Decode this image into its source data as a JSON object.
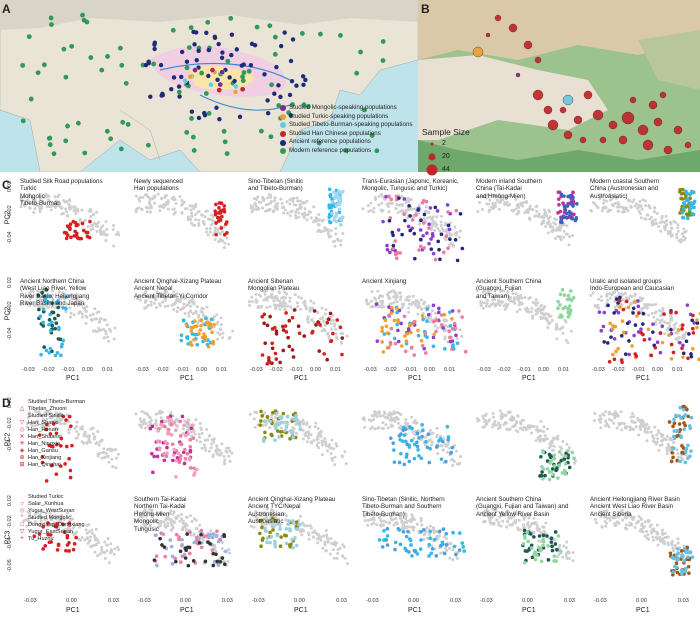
{
  "panel_letters": {
    "a": "A",
    "b": "B",
    "c": "C",
    "d": "D"
  },
  "panel_a": {
    "legend": [
      {
        "label": "Studied Mongolic-speaking populations",
        "color": "#7b2a8c"
      },
      {
        "label": "Studied Turkic-speaking populations",
        "color": "#e8a03a"
      },
      {
        "label": "Studied Tibeto-Burman-speaking populations",
        "color": "#67c9e0"
      },
      {
        "label": "Studied Han Chinese populations",
        "color": "#c0262d"
      },
      {
        "label": "Ancient reference populations",
        "color": "#1f2a7a"
      },
      {
        "label": "Modern reference populations",
        "color": "#2e9a56"
      }
    ]
  },
  "panel_b": {
    "size_legend_title": "Sample Size",
    "size_legend": [
      "2",
      "20",
      "44"
    ],
    "circle_color": "#c0262d"
  },
  "panel_c": {
    "ylabel": "PC2",
    "xlabel": "PC1",
    "x_ticks": [
      "-0.03",
      "-0.02",
      "-0.01",
      "0.00",
      "0.01"
    ],
    "y_ticks": [
      "0.02",
      "-0.02",
      "-0.04"
    ],
    "row1_titles": [
      "Studied Silk Road populations\nTurkic\nMongolic\nTibeto-Burman",
      "Newly sequenced\nHan populations",
      "Sino-Tibetan (Sinitic\nand Tibeto-Burman)",
      "Trans-Eurasian (Japonic, Koreanic,\nMongolic, Tungusic and Turkic)",
      "Modern inland Southern\nChina (Tai-Kadai\nand Hmong-Mien)",
      "Modern coastal Southern\nChina (Austronesian and\nAustroasiatic)"
    ],
    "row2_titles": [
      "Ancient Northern China\n(West Liao River, Yellow\nRiver Basin, Heilongjiang\nRiver Basin) and Japan",
      "Ancient Qinghai-Xizang Plateau\nAncient Nepal\nAncient Tibetan-Yi Corridor",
      "Ancient Siberian\nMongolian Plateau",
      "Ancient Xinjiang",
      "Ancient Southern China\n(Guangxi, Fujian\nand Taiwan)",
      "Uralic and isolated groups\nIndo-European and Caucasian"
    ]
  },
  "panel_d": {
    "ylabel_top": "PC2",
    "ylabel_bottom": "PC3",
    "xlabel": "PC1",
    "x_ticks": [
      "-0.03",
      "0.00",
      "0.03"
    ],
    "y_ticks_top": [
      "0.02",
      "-0.02",
      "-0.04"
    ],
    "y_ticks_bottom": [
      "0.02",
      "-0.02",
      "-0.04",
      "-0.06"
    ],
    "legend_top": [
      {
        "sym": "",
        "label": "Studied Tibeto-Burman"
      },
      {
        "sym": "△",
        "label": "Tibetan_Zhuoni"
      },
      {
        "sym": "",
        "label": "Studied Sinitic"
      },
      {
        "sym": "▽",
        "label": "Han_Shanxi"
      },
      {
        "sym": "◇",
        "label": "Han_Henan"
      },
      {
        "sym": "✕",
        "label": "Han_Shaanxi"
      },
      {
        "sym": "✳",
        "label": "Han_Ningxia"
      },
      {
        "sym": "◈",
        "label": "Han_Gansu"
      },
      {
        "sym": "⊕",
        "label": "Han_Xinjiang"
      },
      {
        "sym": "⊞",
        "label": "Han_Qinghai"
      }
    ],
    "legend_bottom": [
      {
        "sym": "",
        "label": "Studied Turkic"
      },
      {
        "sym": "○",
        "label": "Salar_Xunhua"
      },
      {
        "sym": "◇",
        "label": "Yugur_WestSunan"
      },
      {
        "sym": "",
        "label": "Studied Mongolic"
      },
      {
        "sym": "□",
        "label": "Dongxiang_Dongxiang"
      },
      {
        "sym": "▽",
        "label": "Yugur_EastSunan"
      },
      {
        "sym": "+",
        "label": "Tu_Huzhu"
      }
    ],
    "bottom_titles": [
      "",
      "Southern Tai-Kadai\nNorthern Tai-Kadai\nHmong-Mien\nMongolic\nTungusic",
      "Ancient Qinghai-Xizang Plateau\nAncient TYC/Nepal\nAustronesian\nAustroasiatic",
      "Sino-Tibetan (Sinitic, Northern\nTibeto-Burman and Southern\nTibeto-Burman)",
      "Ancient Southern China\n(Guangxi, Fujian and Taiwan) and\nAncient Yellow River Basin",
      "Ancient Heilongjiang River Basin\nAncient West Liao River Basin\nAncient Siberia"
    ]
  },
  "colors": {
    "grey": "#c8c8c8",
    "red": "#d62020",
    "cyan": "#35b8e8",
    "purple": "#8a3fd0",
    "pink": "#f07aa0",
    "magenta": "#c0309a",
    "olive": "#8a8a10",
    "darkblue": "#1f2a7a",
    "darkred": "#a01818",
    "teal": "#1f5a50",
    "orange": "#f0a030",
    "lightgreen": "#8fd6a0",
    "brown": "#9a5a20"
  }
}
